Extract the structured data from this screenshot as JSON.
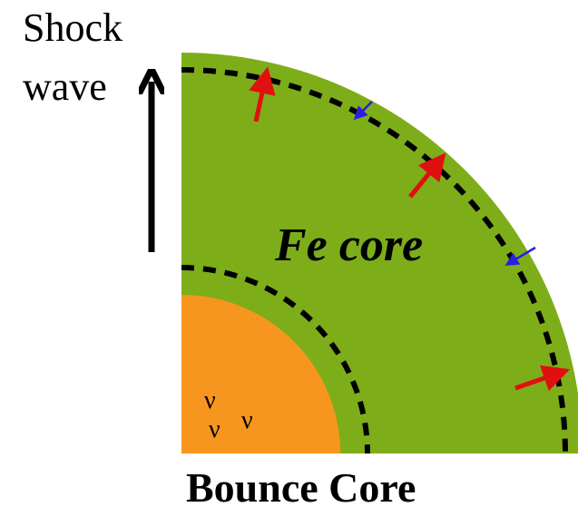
{
  "labels": {
    "shock": "Shock",
    "wave": "wave",
    "core": "Fe core",
    "bounce": "Bounce Core",
    "nu": [
      "ν",
      "ν",
      "ν"
    ]
  }
}
